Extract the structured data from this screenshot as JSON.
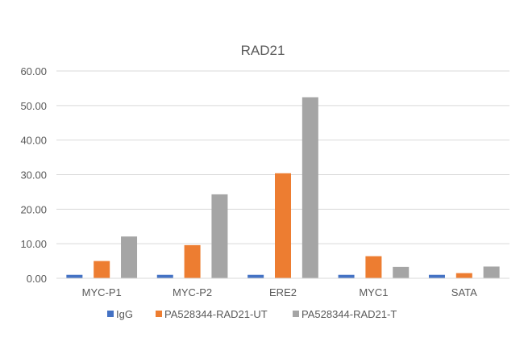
{
  "chart_data": {
    "type": "bar",
    "title": "RAD21",
    "xlabel": "",
    "ylabel": "",
    "categories": [
      "MYC-P1",
      "MYC-P2",
      "ERE2",
      "MYC1",
      "SATA"
    ],
    "series": [
      {
        "name": "IgG",
        "color": "#4472C4",
        "values": [
          1.0,
          1.0,
          1.0,
          1.0,
          1.0
        ]
      },
      {
        "name": "PA528344-RAD21-UT",
        "color": "#ED7D31",
        "values": [
          5.0,
          9.6,
          30.4,
          6.4,
          1.5
        ]
      },
      {
        "name": "PA528344-RAD21-T",
        "color": "#A5A5A5",
        "values": [
          12.1,
          24.3,
          52.4,
          3.3,
          3.4
        ]
      }
    ],
    "ylim": [
      0,
      60
    ],
    "ytick_labels": [
      "0.00",
      "10.00",
      "20.00",
      "30.00",
      "40.00",
      "50.00",
      "60.00"
    ],
    "grid": true,
    "legend_position": "bottom"
  }
}
